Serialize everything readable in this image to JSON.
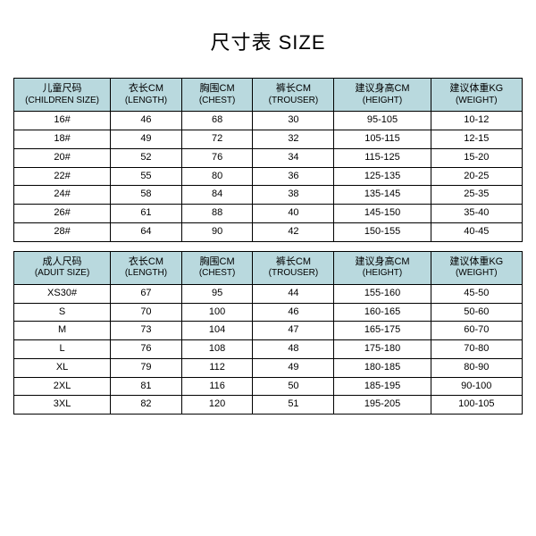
{
  "title": "尺寸表 SIZE",
  "header_bg": "#b9d9de",
  "row_bg": "#ffffff",
  "columns_children": [
    {
      "zh": "儿童尺码",
      "en": "(CHILDREN SIZE)"
    },
    {
      "zh": "衣长CM",
      "en": "(LENGTH)"
    },
    {
      "zh": "胸围CM",
      "en": "(CHEST)"
    },
    {
      "zh": "裤长CM",
      "en": "(TROUSER)"
    },
    {
      "zh": "建议身高CM",
      "en": "(HEIGHT)"
    },
    {
      "zh": "建议体重KG",
      "en": "(WEIGHT)"
    }
  ],
  "rows_children": [
    [
      "16#",
      "46",
      "68",
      "30",
      "95-105",
      "10-12"
    ],
    [
      "18#",
      "49",
      "72",
      "32",
      "105-115",
      "12-15"
    ],
    [
      "20#",
      "52",
      "76",
      "34",
      "115-125",
      "15-20"
    ],
    [
      "22#",
      "55",
      "80",
      "36",
      "125-135",
      "20-25"
    ],
    [
      "24#",
      "58",
      "84",
      "38",
      "135-145",
      "25-35"
    ],
    [
      "26#",
      "61",
      "88",
      "40",
      "145-150",
      "35-40"
    ],
    [
      "28#",
      "64",
      "90",
      "42",
      "150-155",
      "40-45"
    ]
  ],
  "columns_adult": [
    {
      "zh": "成人尺码",
      "en": "(ADUIT SIZE)"
    },
    {
      "zh": "衣长CM",
      "en": "(LENGTH)"
    },
    {
      "zh": "胸围CM",
      "en": "(CHEST)"
    },
    {
      "zh": "裤长CM",
      "en": "(TROUSER)"
    },
    {
      "zh": "建议身高CM",
      "en": "(HEIGHT)"
    },
    {
      "zh": "建议体重KG",
      "en": "(WEIGHT)"
    }
  ],
  "rows_adult": [
    [
      "XS30#",
      "67",
      "95",
      "44",
      "155-160",
      "45-50"
    ],
    [
      "S",
      "70",
      "100",
      "46",
      "160-165",
      "50-60"
    ],
    [
      "M",
      "73",
      "104",
      "47",
      "165-175",
      "60-70"
    ],
    [
      "L",
      "76",
      "108",
      "48",
      "175-180",
      "70-80"
    ],
    [
      "XL",
      "79",
      "112",
      "49",
      "180-185",
      "80-90"
    ],
    [
      "2XL",
      "81",
      "116",
      "50",
      "185-195",
      "90-100"
    ],
    [
      "3XL",
      "82",
      "120",
      "51",
      "195-205",
      "100-105"
    ]
  ],
  "col_widths": [
    "19%",
    "14%",
    "14%",
    "16%",
    "19%",
    "18%"
  ]
}
